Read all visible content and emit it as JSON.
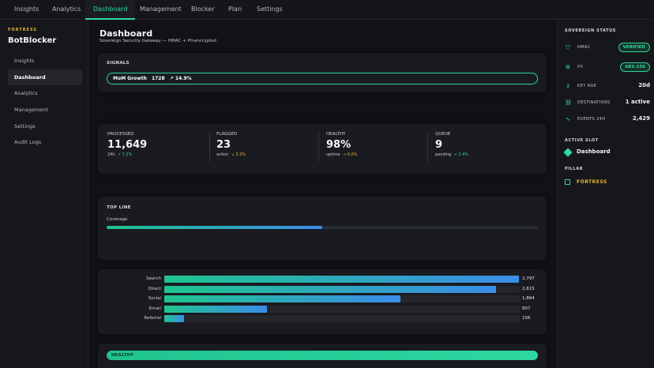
{
  "topnav": {
    "tabs": [
      {
        "label": "Insights"
      },
      {
        "label": "Analytics"
      },
      {
        "label": "Dashboard"
      },
      {
        "label": "Management"
      },
      {
        "label": "Blocker"
      },
      {
        "label": "Plan"
      },
      {
        "label": "Settings"
      }
    ],
    "active": "Dashboard"
  },
  "sidebar": {
    "brand_tag": "FORTRESS",
    "brand_name": "BotBlocker",
    "items": [
      {
        "label": "Insights"
      },
      {
        "label": "Dashboard"
      },
      {
        "label": "Analytics"
      },
      {
        "label": "Management"
      },
      {
        "label": "Settings"
      },
      {
        "label": "Audit Logs"
      }
    ],
    "active": "Dashboard"
  },
  "main": {
    "title": "Dashboard",
    "subtitle": "Sovereign Security Gateway — HMAC + PII-encrypted",
    "signals": {
      "label": "SIGNALS",
      "name": "MoM Growth",
      "value": "1728",
      "delta": "↗ 14.9%"
    },
    "stats": [
      {
        "label": "PROCESSED",
        "value": "11,649",
        "foot_label": "24h",
        "delta": "↗ 7.2%",
        "trend": "up"
      },
      {
        "label": "FLAGGED",
        "value": "23",
        "foot_label": "action",
        "delta": "↘ 3.3%",
        "trend": "down"
      },
      {
        "label": "HEALTHY",
        "value": "98%",
        "foot_label": "uptime",
        "delta": "→ 0.0%",
        "trend": "flat"
      },
      {
        "label": "QUEUE",
        "value": "9",
        "foot_label": "pending",
        "delta": "↗ 2.4%",
        "trend": "up"
      }
    ],
    "top_line": {
      "label": "TOP LINE",
      "metric": "Coverage",
      "fraction": 0.5
    },
    "sources": [
      {
        "label": "Search",
        "value": 2797,
        "display": "2,797"
      },
      {
        "label": "Direct",
        "value": 2615,
        "display": "2,615"
      },
      {
        "label": "Social",
        "value": 1864,
        "display": "1,864"
      },
      {
        "label": "Email",
        "value": 807,
        "display": "807"
      },
      {
        "label": "Referral",
        "value": 156,
        "display": "156"
      }
    ],
    "health_label": "HEALTHY"
  },
  "status_panel": {
    "title": "SOVEREIGN STATUS",
    "rows": [
      {
        "icon": "shield-icon",
        "key": "HMAC",
        "badge": "VERIFIED"
      },
      {
        "icon": "lock-icon",
        "key": "PII",
        "badge": "AES-256"
      },
      {
        "icon": "key-icon",
        "key": "KEY AGE",
        "value": "20d"
      },
      {
        "icon": "link-icon",
        "key": "DESTINATIONS",
        "value": "1 active"
      },
      {
        "icon": "pulse-icon",
        "key": "EVENTS 24H",
        "value": "2,429"
      }
    ],
    "active_slot_title": "ACTIVE SLOT",
    "active_slot": "Dashboard",
    "pillar_title": "PILLAR",
    "pillar": "FORTRESS",
    "accent": "#2fd6a0",
    "warn": "#e8b52f"
  }
}
